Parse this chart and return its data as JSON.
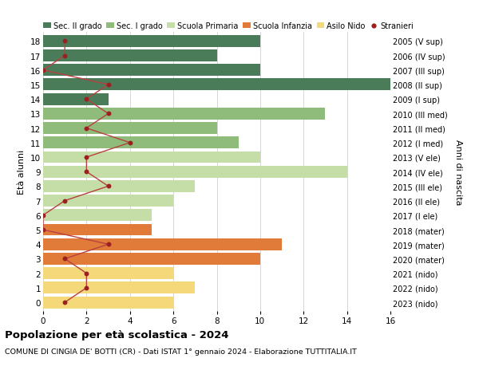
{
  "ages": [
    18,
    17,
    16,
    15,
    14,
    13,
    12,
    11,
    10,
    9,
    8,
    7,
    6,
    5,
    4,
    3,
    2,
    1,
    0
  ],
  "year_labels": [
    "2005 (V sup)",
    "2006 (IV sup)",
    "2007 (III sup)",
    "2008 (II sup)",
    "2009 (I sup)",
    "2010 (III med)",
    "2011 (II med)",
    "2012 (I med)",
    "2013 (V ele)",
    "2014 (IV ele)",
    "2015 (III ele)",
    "2016 (II ele)",
    "2017 (I ele)",
    "2018 (mater)",
    "2019 (mater)",
    "2020 (mater)",
    "2021 (nido)",
    "2022 (nido)",
    "2023 (nido)"
  ],
  "bar_values": [
    10,
    8,
    10,
    16,
    3,
    13,
    8,
    9,
    10,
    14,
    7,
    6,
    5,
    5,
    11,
    10,
    6,
    7,
    6
  ],
  "stranieri": [
    1,
    1,
    0,
    3,
    2,
    3,
    2,
    4,
    2,
    2,
    3,
    1,
    0,
    0,
    3,
    1,
    2,
    2,
    1
  ],
  "bar_colors": [
    "#4a7c59",
    "#4a7c59",
    "#4a7c59",
    "#4a7c59",
    "#4a7c59",
    "#8fbc7a",
    "#8fbc7a",
    "#8fbc7a",
    "#c5dea8",
    "#c5dea8",
    "#c5dea8",
    "#c5dea8",
    "#c5dea8",
    "#e07b39",
    "#e07b39",
    "#e07b39",
    "#f5d87a",
    "#f5d87a",
    "#f5d87a"
  ],
  "stranieri_color": "#9b2020",
  "stranieri_line_color": "#b84040",
  "legend_labels": [
    "Sec. II grado",
    "Sec. I grado",
    "Scuola Primaria",
    "Scuola Infanzia",
    "Asilo Nido",
    "Stranieri"
  ],
  "legend_colors": [
    "#4a7c59",
    "#8fbc7a",
    "#c5dea8",
    "#e07b39",
    "#f5d87a",
    "#9b2020"
  ],
  "ylabel_left": "Età alunni",
  "ylabel_right": "Anni di nascita",
  "title": "Popolazione per età scolastica - 2024",
  "subtitle": "COMUNE DI CINGIA DE' BOTTI (CR) - Dati ISTAT 1° gennaio 2024 - Elaborazione TUTTITALIA.IT",
  "xlim": [
    0,
    16
  ],
  "xticks": [
    0,
    2,
    4,
    6,
    8,
    10,
    12,
    14,
    16
  ],
  "background_color": "#ffffff",
  "grid_color": "#d0d0d0"
}
